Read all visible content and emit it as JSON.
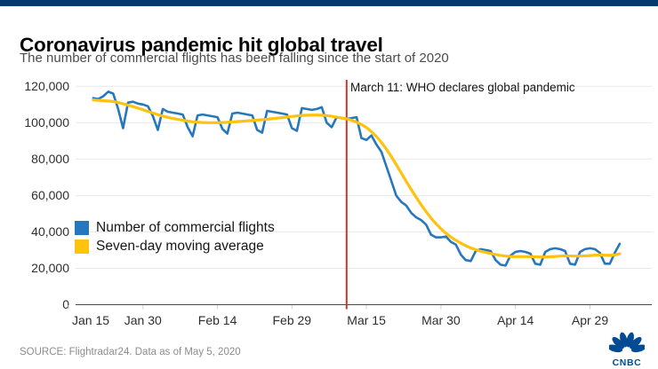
{
  "page": {
    "title": "Coronavirus pandemic hit global travel",
    "subtitle": "The number of commercial flights has been falling since the start of 2020",
    "source": "SOURCE: Flightradar24. Data as of May 5, 2020",
    "brand": "CNBC"
  },
  "colors": {
    "top_bar": "#003A70",
    "brand": "#004B93",
    "grid": "#e8e8e8",
    "baseline": "#4a4a4a",
    "tick_text": "#2e2e2e"
  },
  "chart_data": {
    "type": "line",
    "title": "Coronavirus pandemic hit global travel",
    "subtitle": "The number of commercial flights has been falling since the start of 2020",
    "x_axis": {
      "start_date": "Jan 20, 2020",
      "end_date": "May 5, 2020",
      "interval": "daily",
      "tick_labels": [
        "Jan 15",
        "Jan 30",
        "Feb 14",
        "Feb 29",
        "Mar 15",
        "Mar 30",
        "Apr 14",
        "Apr 29"
      ],
      "tick_day_offsets": [
        -5,
        10,
        25,
        40,
        55,
        70,
        85,
        100
      ]
    },
    "y_axis": {
      "ylim": [
        0,
        120000
      ],
      "tick_values": [
        0,
        20000,
        40000,
        60000,
        80000,
        100000,
        120000
      ],
      "tick_labels": [
        "0",
        "20,000",
        "40,000",
        "60,000",
        "80,000",
        "100,000",
        "120,000"
      ],
      "grid": true
    },
    "annotation": {
      "text": "March 11: WHO declares global pandemic",
      "date": "Mar 11, 2020",
      "day_offset": 51,
      "color": "#C03A2B"
    },
    "legend_position": "inside-left",
    "series": [
      {
        "name": "Number of commercial flights",
        "color": "#2677BB",
        "values": [
          113500,
          113000,
          114500,
          117000,
          116000,
          107500,
          97000,
          111000,
          111500,
          110500,
          110000,
          109000,
          103500,
          96000,
          107500,
          106000,
          105500,
          105000,
          104500,
          97500,
          92500,
          104000,
          104500,
          104000,
          103500,
          103000,
          96500,
          94000,
          105000,
          105500,
          105000,
          104500,
          104000,
          96000,
          94500,
          106500,
          106000,
          105500,
          105000,
          104500,
          97000,
          95500,
          108000,
          107500,
          107000,
          107500,
          108500,
          100000,
          97500,
          103000,
          102500,
          102000,
          102500,
          103000,
          91500,
          90500,
          93000,
          88000,
          84000,
          76000,
          68000,
          60000,
          56500,
          54500,
          50500,
          48000,
          46500,
          44000,
          38500,
          37000,
          37000,
          37500,
          34500,
          33000,
          27500,
          24500,
          24000,
          29500,
          30500,
          30000,
          29500,
          24500,
          22000,
          21500,
          27000,
          29000,
          29500,
          29000,
          28000,
          22500,
          22000,
          29000,
          30500,
          31000,
          30500,
          29500,
          22500,
          22000,
          29000,
          30500,
          31000,
          30500,
          28500,
          22500,
          22500,
          28500,
          33500
        ]
      },
      {
        "name": "Seven-day moving average",
        "color": "#FFC20E",
        "values": [
          112500,
          112300,
          112100,
          111900,
          111600,
          111100,
          110400,
          109600,
          108800,
          108000,
          107100,
          106200,
          105300,
          104400,
          103600,
          102900,
          102300,
          101800,
          101300,
          100900,
          100500,
          100300,
          100100,
          100000,
          100000,
          100000,
          100100,
          100200,
          100400,
          100600,
          100800,
          101000,
          101200,
          101400,
          101600,
          101900,
          102200,
          102500,
          102800,
          103100,
          103400,
          103700,
          104000,
          104100,
          104200,
          104200,
          104100,
          103900,
          103500,
          103000,
          102600,
          102100,
          101300,
          100300,
          99000,
          97300,
          95100,
          92400,
          89200,
          85500,
          81400,
          77000,
          72400,
          67800,
          63300,
          59000,
          54900,
          51100,
          47600,
          44500,
          41700,
          39300,
          37200,
          35400,
          33800,
          32400,
          31200,
          30200,
          29400,
          28700,
          28100,
          27600,
          27100,
          26700,
          26500,
          26400,
          26400,
          26400,
          26400,
          26300,
          26200,
          26200,
          26300,
          26500,
          26700,
          26800,
          26800,
          26700,
          26700,
          26800,
          27000,
          27200,
          27300,
          27200,
          27100,
          27300,
          28000
        ]
      }
    ]
  }
}
